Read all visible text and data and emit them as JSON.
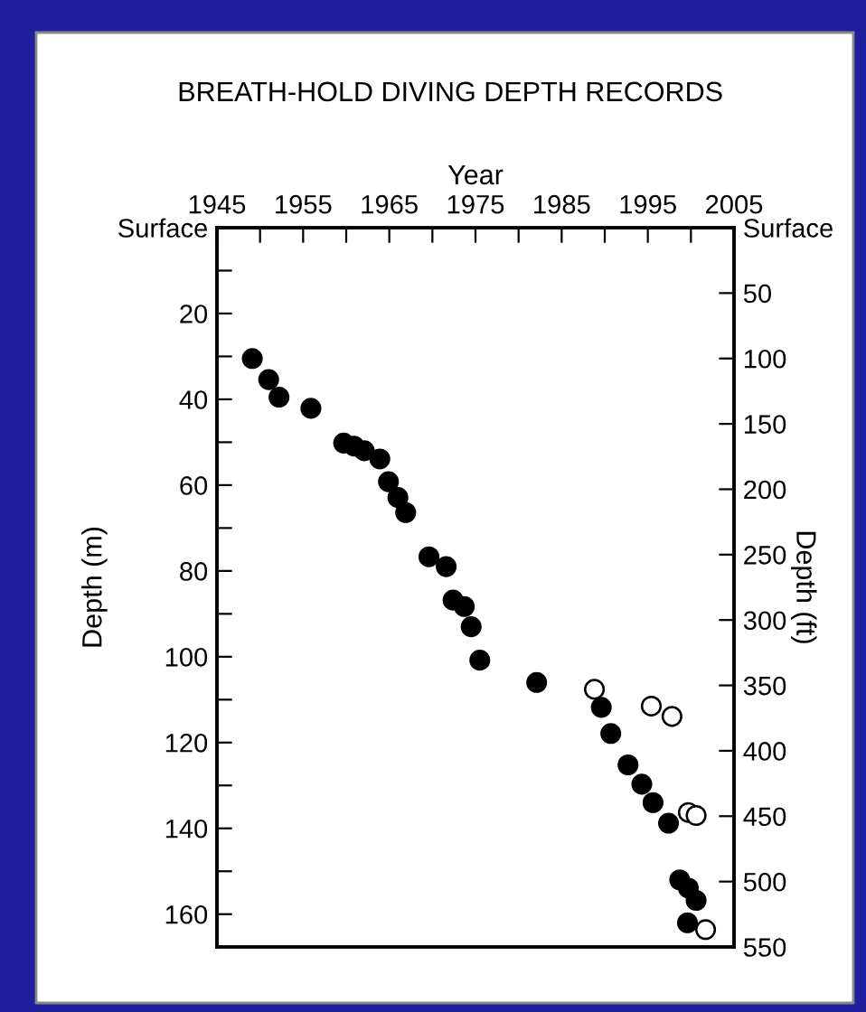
{
  "chart_data": {
    "type": "scatter",
    "title": "BREATH-HOLD DIVING DEPTH RECORDS",
    "xlabel": "Year",
    "ylabel": "Depth (m)",
    "y2label": "Depth (ft)",
    "series": [
      {
        "color": "#000000",
        "x": [
          1949.1,
          1951.0,
          1952.2,
          1955.9,
          1959.7,
          1960.9,
          1962.1,
          1963.9,
          1964.9,
          1966.0,
          1966.9,
          1969.6,
          1971.6,
          1972.4,
          1973.7,
          1974.5,
          1975.5,
          1982.1,
          1989.6,
          1990.7,
          1992.7,
          1994.3,
          1995.6,
          1997.4,
          1998.7,
          1999.7,
          2000.6,
          1999.6
        ],
        "values": [
          30.5,
          35.4,
          39.5,
          42.1,
          50.2,
          50.9,
          52.0,
          53.9,
          59.2,
          62.9,
          66.4,
          76.7,
          79.0,
          86.8,
          88.3,
          93.0,
          100.8,
          106.0,
          111.8,
          117.9,
          125.2,
          129.7,
          134.0,
          138.8,
          152.0,
          153.9,
          156.8,
          162.0
        ]
      },
      {
        "color": "#ffffff",
        "x": [
          1988.8,
          1995.4,
          1997.8,
          1999.7,
          2000.6,
          2001.7
        ],
        "values": [
          107.6,
          111.5,
          113.9,
          136.3,
          137.0,
          163.6
        ]
      }
    ],
    "marker": "circle",
    "grid": false,
    "legend": false,
    "xlim": [
      1945,
      2005
    ],
    "xticks": [
      1945,
      {
        "value": 1950,
        "label": null
      },
      1955,
      {
        "value": 1960,
        "label": null
      },
      1965,
      {
        "value": 1970,
        "label": null
      },
      1975,
      {
        "value": 1980,
        "label": null
      },
      1985,
      {
        "value": 1990,
        "label": null
      },
      1995,
      {
        "value": 2000,
        "label": null
      },
      2005
    ],
    "ylim": [
      167.64,
      0
    ],
    "yticks": [
      {
        "value": 0,
        "label": "Surface"
      },
      {
        "value": 10,
        "label": null
      },
      20,
      {
        "value": 30,
        "label": null
      },
      40,
      {
        "value": 50,
        "label": null
      },
      60,
      {
        "value": 70,
        "label": null
      },
      80,
      {
        "value": 90,
        "label": null
      },
      100,
      {
        "value": 110,
        "label": null
      },
      120,
      {
        "value": 130,
        "label": null
      },
      140,
      {
        "value": 150,
        "label": null
      },
      160
    ],
    "y2lim": [
      550,
      0
    ],
    "y2ticks": [
      {
        "value": 0,
        "label": "Surface"
      },
      50,
      100,
      150,
      200,
      250,
      300,
      350,
      400,
      450,
      500,
      550
    ]
  }
}
